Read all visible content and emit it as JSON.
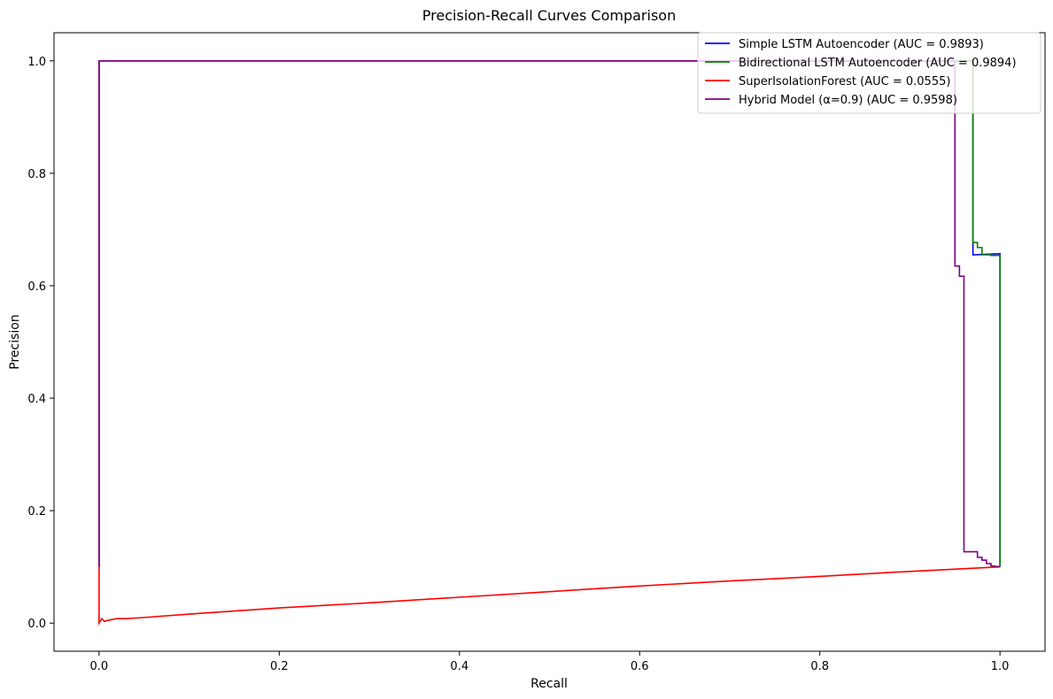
{
  "chart_data": {
    "type": "line",
    "title": "Precision-Recall Curves Comparison",
    "xlabel": "Recall",
    "ylabel": "Precision",
    "xlim": [
      -0.05,
      1.05
    ],
    "ylim": [
      -0.05,
      1.05
    ],
    "xticks": [
      0.0,
      0.2,
      0.4,
      0.6,
      0.8,
      1.0
    ],
    "xtick_labels": [
      "0.0",
      "0.2",
      "0.4",
      "0.6",
      "0.8",
      "1.0"
    ],
    "yticks": [
      0.0,
      0.2,
      0.4,
      0.6,
      0.8,
      1.0
    ],
    "ytick_labels": [
      "0.0",
      "0.2",
      "0.4",
      "0.6",
      "0.8",
      "1.0"
    ],
    "grid": false,
    "legend_position": "top-right",
    "series": [
      {
        "name": "Simple LSTM Autoencoder (AUC = 0.9893)",
        "color": "#0000ff",
        "x": [
          0.0,
          0.0,
          0.97,
          0.97,
          1.0,
          1.0
        ],
        "y": [
          0.1,
          1.0,
          1.0,
          0.655,
          0.657,
          0.1
        ]
      },
      {
        "name": "Bidirectional LSTM Autoencoder (AUC = 0.9894)",
        "color": "#008000",
        "x": [
          0.0,
          0.0,
          0.97,
          0.97,
          0.975,
          0.975,
          0.98,
          0.98,
          0.99,
          0.99,
          1.0,
          1.0
        ],
        "y": [
          0.1,
          1.0,
          1.0,
          0.677,
          0.677,
          0.668,
          0.668,
          0.655,
          0.655,
          0.654,
          0.654,
          0.1
        ]
      },
      {
        "name": "SuperIsolationForest (AUC = 0.0555)",
        "color": "#ff0000",
        "x": [
          0.0,
          0.0,
          0.003,
          0.006,
          0.01,
          0.02,
          0.03,
          0.05,
          0.1,
          0.2,
          0.3,
          0.4,
          0.5,
          0.6,
          0.7,
          0.8,
          0.9,
          1.0
        ],
        "y": [
          1.0,
          0.0,
          0.008,
          0.003,
          0.005,
          0.008,
          0.008,
          0.01,
          0.016,
          0.027,
          0.036,
          0.046,
          0.056,
          0.066,
          0.075,
          0.083,
          0.092,
          0.1
        ]
      },
      {
        "name": "Hybrid Model (α=0.9) (AUC = 0.9598)",
        "color": "#800080",
        "x": [
          0.0,
          0.0,
          0.95,
          0.95,
          0.955,
          0.955,
          0.96,
          0.96,
          0.975,
          0.975,
          0.98,
          0.98,
          0.985,
          0.985,
          0.99,
          0.99,
          1.0
        ],
        "y": [
          0.1,
          1.0,
          1.0,
          0.635,
          0.635,
          0.617,
          0.617,
          0.127,
          0.127,
          0.117,
          0.117,
          0.112,
          0.112,
          0.106,
          0.106,
          0.102,
          0.1
        ]
      }
    ]
  }
}
